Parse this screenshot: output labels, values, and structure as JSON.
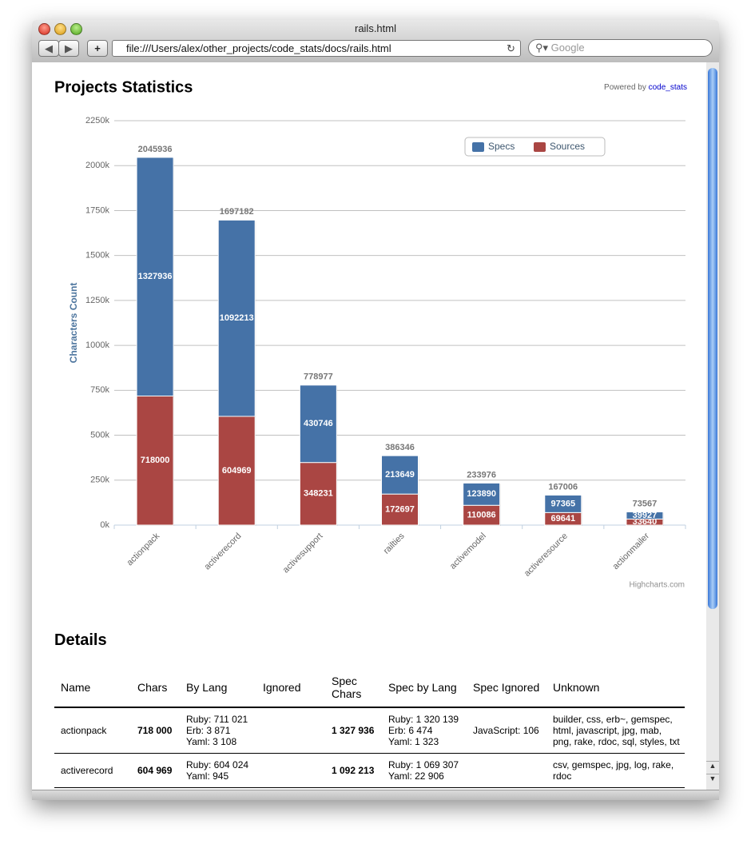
{
  "window": {
    "title": "rails.html",
    "url": "file:///Users/alex/other_projects/code_stats/docs/rails.html",
    "search_placeholder": "Google"
  },
  "page": {
    "heading": "Projects Statistics",
    "powered_by": "Powered by",
    "powered_link": "code_stats",
    "credits": "Highcharts.com",
    "details_heading": "Details"
  },
  "chart_data": {
    "type": "stacked_bar",
    "y_axis_title": "Characters Count",
    "categories": [
      "actionpack",
      "activerecord",
      "activesupport",
      "railties",
      "activemodel",
      "activeresource",
      "actionmailer"
    ],
    "series": [
      {
        "name": "Specs",
        "color": "#4572a7",
        "values": [
          1327936,
          1092213,
          430746,
          213649,
          123890,
          97365,
          39927
        ]
      },
      {
        "name": "Sources",
        "color": "#aa4643",
        "values": [
          718000,
          604969,
          348231,
          172697,
          110086,
          69641,
          33640
        ]
      }
    ],
    "stack_totals": [
      2045936,
      1697182,
      778977,
      386346,
      233976,
      167006,
      73567
    ],
    "ylim": [
      0,
      2250000
    ],
    "yticks": [
      {
        "value": 0,
        "label": "0k"
      },
      {
        "value": 250000,
        "label": "250k"
      },
      {
        "value": 500000,
        "label": "500k"
      },
      {
        "value": 750000,
        "label": "750k"
      },
      {
        "value": 1000000,
        "label": "1000k"
      },
      {
        "value": 1250000,
        "label": "1250k"
      },
      {
        "value": 1500000,
        "label": "1500k"
      },
      {
        "value": 1750000,
        "label": "1750k"
      },
      {
        "value": 2000000,
        "label": "2000k"
      },
      {
        "value": 2250000,
        "label": "2250k"
      }
    ],
    "grid": true,
    "legend": "top-right"
  },
  "table": {
    "columns": [
      "Name",
      "Chars",
      "By Lang",
      "Ignored",
      "Spec Chars",
      "Spec by Lang",
      "Spec Ignored",
      "Unknown"
    ],
    "rows": [
      [
        "actionpack",
        "718 000",
        [
          "Ruby: 711 021",
          "Erb: 3 871",
          "Yaml: 3 108"
        ],
        null,
        "1 327 936",
        [
          "Ruby: 1 320 139",
          "Erb: 6 474",
          "Yaml: 1 323"
        ],
        "JavaScript: 106",
        "builder, css, erb~, gemspec, html, javascript, jpg, mab, png, rake, rdoc, sql, styles, txt"
      ],
      [
        "activerecord",
        "604 969",
        [
          "Ruby: 604 024",
          "Yaml: 945"
        ],
        null,
        "1 092 213",
        [
          "Ruby: 1 069 307",
          "Yaml: 22 906"
        ],
        null,
        "csv, gemspec, jpg, log, rake, rdoc"
      ]
    ]
  }
}
